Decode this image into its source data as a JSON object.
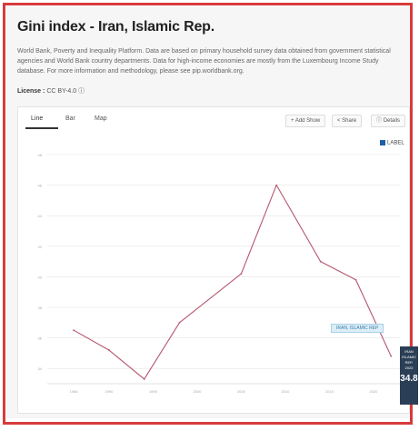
{
  "header": {
    "title": "Gini index - Iran, Islamic Rep.",
    "description": "World Bank, Poverty and Inequality Platform. Data are based on primary household survey data obtained from government statistical agencies and World Bank country departments. Data for high-income economies are mostly from the Luxembourg Income Study database. For more information and methodology, please see pip.worldbank.org.",
    "license_label": "License :",
    "license_value": "CC BY-4.0"
  },
  "tabs": [
    "Line",
    "Bar",
    "Map"
  ],
  "toolbar": {
    "add_label": "+ Add Show",
    "share_label": "< Share",
    "details_label": "Details"
  },
  "legend_label": "LABEL",
  "tooltip_text": "IRAN, ISLAMIC REP",
  "side_label": [
    "IRAN",
    "ISLAMIC",
    "REP.",
    "2022"
  ],
  "side_value": "34.8",
  "colors": {
    "line": "#b5566d",
    "frame": "#d83b3b",
    "legend": "#1f5fa8",
    "grid": "#e3e3e3"
  },
  "chart_data": {
    "type": "line",
    "title": "Gini index - Iran, Islamic Rep.",
    "xlabel": "",
    "ylabel": "",
    "x": [
      1986,
      1990,
      1994,
      1998,
      2005,
      2009,
      2014,
      2018,
      2022
    ],
    "series": [
      {
        "name": "Iran, Islamic Rep.",
        "values": [
          36.5,
          35.2,
          33.3,
          37.0,
          40.2,
          46.0,
          41.0,
          39.8,
          34.8
        ]
      }
    ],
    "ylim": [
      33,
      48
    ],
    "yticks": [
      34,
      36,
      38,
      40,
      42,
      44,
      46,
      48
    ],
    "xticks": [
      1986,
      1990,
      1995,
      2000,
      2005,
      2010,
      2015,
      2020
    ],
    "grid": true,
    "legend": "top-right"
  }
}
